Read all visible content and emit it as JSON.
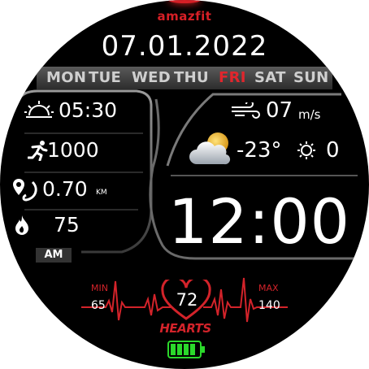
{
  "brand": "amazfit",
  "date": "07.01.2022",
  "weekdays": [
    "MON",
    "TUE",
    "WED",
    "THU",
    "FRI",
    "SAT",
    "SUN"
  ],
  "active_weekday": "FRI",
  "sunrise": "05:30",
  "steps": "1000",
  "distance": {
    "value": "0.70",
    "unit": "KM"
  },
  "calories": "75",
  "ampm": "AM",
  "wind": {
    "value": "07",
    "unit": "m/s"
  },
  "weather": {
    "temperature": "-23°",
    "uv": "0"
  },
  "time": "12:00",
  "heart": {
    "min_label": "MIN",
    "min": "65",
    "max_label": "MAX",
    "max": "140",
    "current": "72",
    "label": "HEARTS"
  },
  "battery": {
    "level": 1.0
  },
  "colors": {
    "accent": "#d61f26",
    "background": "#000000",
    "battery": "#2bd92b",
    "weekbar": "#4a4a4a"
  },
  "icons": [
    "sunrise-icon",
    "running-icon",
    "distance-icon",
    "flame-icon",
    "wind-icon",
    "weather-cloud-sun-icon",
    "uv-icon",
    "heart-icon",
    "battery-icon"
  ]
}
